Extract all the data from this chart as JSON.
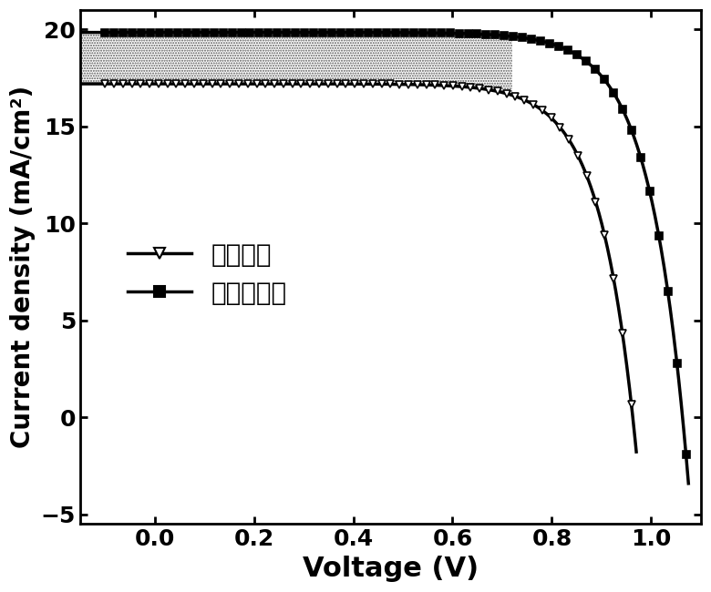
{
  "xlabel": "Voltage (V)",
  "ylabel": "Current density (mA/cm²)",
  "xlim": [
    -0.15,
    1.1
  ],
  "ylim": [
    -5.5,
    21
  ],
  "xticks": [
    0.0,
    0.2,
    0.4,
    0.6,
    0.8,
    1.0
  ],
  "yticks": [
    -5,
    0,
    5,
    10,
    15,
    20
  ],
  "legend1": "传统方法",
  "legend2": "本发明方法",
  "line_color": "#000000",
  "background_color": "#ffffff",
  "series1_Jsc": 17.2,
  "series1_Voc": 0.965,
  "series1_a": 0.072,
  "series2_Jsc": 19.85,
  "series2_Voc": 1.065,
  "series2_a": 0.075,
  "xlabel_fontsize": 22,
  "ylabel_fontsize": 20,
  "tick_fontsize": 18,
  "legend_fontsize": 20,
  "linewidth": 2.5
}
